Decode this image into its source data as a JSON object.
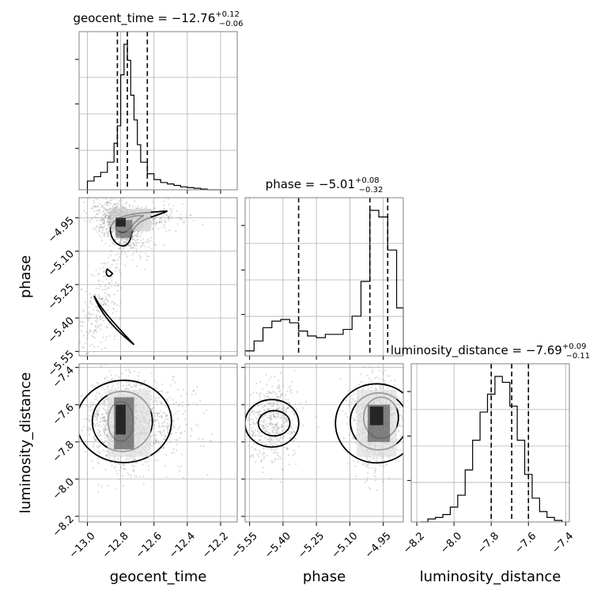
{
  "chart_data": {
    "type": "corner",
    "parameters": [
      {
        "name": "geocent_time",
        "xlabel": "geocent_time",
        "title": {
          "prefix": "geocent_time = ",
          "median": "−12.76",
          "plus": "+0.12",
          "minus": "−0.06"
        },
        "range": [
          -13.05,
          -12.1
        ],
        "ticks": [
          -13.0,
          -12.8,
          -12.6,
          -12.4,
          -12.2
        ],
        "tick_labels": [
          "−13.0",
          "−12.8",
          "−12.6",
          "−12.4",
          "−12.2"
        ],
        "quantiles": [
          -12.82,
          -12.76,
          -12.64
        ],
        "hist": {
          "edges": [
            -13.0,
            -12.96,
            -12.92,
            -12.88,
            -12.84,
            -12.82,
            -12.8,
            -12.78,
            -12.76,
            -12.74,
            -12.72,
            -12.7,
            -12.68,
            -12.64,
            -12.6,
            -12.56,
            -12.52,
            -12.48,
            -12.44,
            -12.4,
            -12.36,
            -12.32,
            -12.28,
            -12.2
          ],
          "counts": [
            0.06,
            0.09,
            0.12,
            0.19,
            0.32,
            0.44,
            0.79,
            1.0,
            0.89,
            0.65,
            0.48,
            0.31,
            0.19,
            0.11,
            0.07,
            0.05,
            0.04,
            0.03,
            0.02,
            0.015,
            0.01,
            0.005,
            0.0
          ]
        }
      },
      {
        "name": "phase",
        "xlabel": "phase",
        "ylabel": "phase",
        "title": {
          "prefix": "phase = ",
          "median": "−5.01",
          "plus": "+0.08",
          "minus": "−0.32"
        },
        "range": [
          -5.57,
          -4.86
        ],
        "ticks": [
          -5.55,
          -5.4,
          -5.25,
          -5.1,
          -4.95
        ],
        "tick_labels": [
          "−5.55",
          "−5.40",
          "−5.25",
          "−5.10",
          "−4.95"
        ],
        "quantiles": [
          -5.33,
          -5.01,
          -4.93
        ],
        "hist": {
          "edges": [
            -5.57,
            -5.53,
            -5.49,
            -5.45,
            -5.41,
            -5.37,
            -5.33,
            -5.29,
            -5.25,
            -5.21,
            -5.17,
            -5.13,
            -5.09,
            -5.05,
            -5.01,
            -4.97,
            -4.93,
            -4.89,
            -4.86
          ],
          "counts": [
            0.03,
            0.09,
            0.17,
            0.21,
            0.22,
            0.2,
            0.15,
            0.12,
            0.11,
            0.13,
            0.13,
            0.16,
            0.24,
            0.45,
            0.88,
            0.84,
            0.64,
            0.29
          ]
        }
      },
      {
        "name": "luminosity_distance",
        "xlabel": "luminosity_distance",
        "ylabel": "luminosity_distance",
        "title": {
          "prefix": "luminosity_distance = ",
          "median": "−7.69",
          "plus": "+0.09",
          "minus": "−0.11"
        },
        "range": [
          -8.23,
          -7.38
        ],
        "ticks": [
          -8.2,
          -8.0,
          -7.8,
          -7.6,
          -7.4
        ],
        "tick_labels": [
          "−8.2",
          "−8.0",
          "−7.8",
          "−7.6",
          "−7.4"
        ],
        "quantiles": [
          -7.8,
          -7.69,
          -7.6
        ],
        "hist": {
          "edges": [
            -8.18,
            -8.14,
            -8.1,
            -8.06,
            -8.02,
            -7.98,
            -7.94,
            -7.9,
            -7.86,
            -7.82,
            -7.78,
            -7.74,
            -7.7,
            -7.66,
            -7.62,
            -7.58,
            -7.54,
            -7.5,
            -7.46,
            -7.42
          ],
          "counts": [
            0.0,
            0.02,
            0.03,
            0.05,
            0.1,
            0.18,
            0.35,
            0.55,
            0.74,
            0.86,
            0.98,
            0.94,
            0.78,
            0.55,
            0.32,
            0.16,
            0.07,
            0.03,
            0.01
          ]
        }
      }
    ],
    "grid": true
  }
}
